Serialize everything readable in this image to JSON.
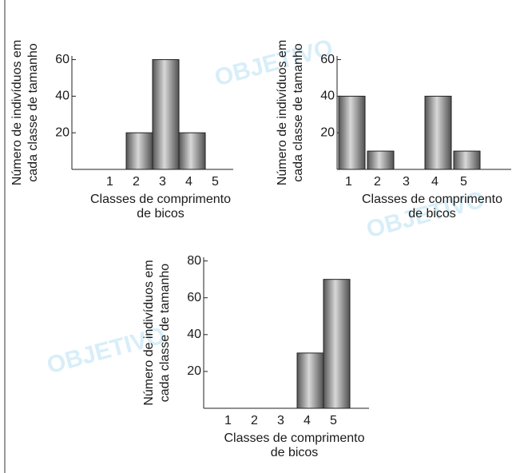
{
  "watermark": "OBJETIVO",
  "chart_data": [
    {
      "type": "bar",
      "categories": [
        "1",
        "2",
        "3",
        "4",
        "5"
      ],
      "values": [
        0,
        20,
        60,
        20,
        0
      ],
      "color": "#8a8a8a",
      "ylim": [
        0,
        62
      ],
      "yticks": [
        20,
        40,
        60
      ],
      "ylabel": [
        "Número de indivíduos em",
        "cada classe de tamanho"
      ],
      "xlabel": [
        "Classes de comprimento",
        "de bicos"
      ]
    },
    {
      "type": "bar",
      "categories": [
        "1",
        "2",
        "3",
        "4",
        "5"
      ],
      "values": [
        40,
        10,
        0,
        40,
        10
      ],
      "color": "#8a8a8a",
      "ylim": [
        0,
        62
      ],
      "yticks": [
        20,
        40,
        60
      ],
      "ylabel": [
        "Número de indivíduos em",
        "cada classe de tamanho"
      ],
      "xlabel": [
        "Classes de comprimento",
        "de bicos"
      ]
    },
    {
      "type": "bar",
      "categories": [
        "1",
        "2",
        "3",
        "4",
        "5"
      ],
      "values": [
        0,
        0,
        0,
        30,
        70
      ],
      "color": "#8a8a8a",
      "ylim": [
        0,
        82
      ],
      "yticks": [
        20,
        40,
        60,
        80
      ],
      "ylabel": [
        "Número de indivíduos em",
        "cada classe de tamanho"
      ],
      "xlabel": [
        "Classes de comprimento",
        "de bicos"
      ]
    }
  ]
}
